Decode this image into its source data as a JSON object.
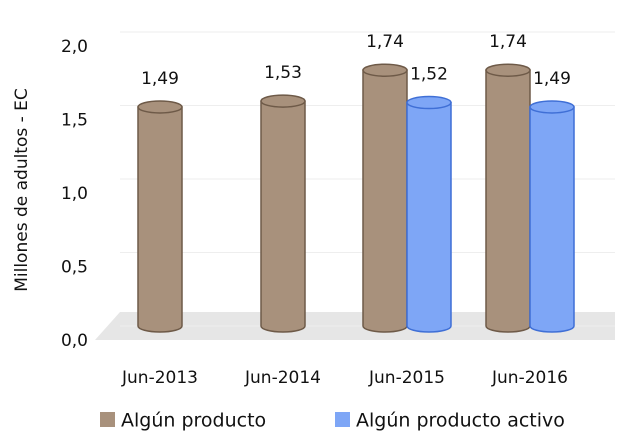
{
  "chart_data": {
    "type": "bar",
    "ylabel": "Millones de adultos - EC",
    "categories": [
      "Jun-2013",
      "Jun-2014",
      "Jun-2015",
      "Jun-2016"
    ],
    "series": [
      {
        "name": "Algún producto",
        "color": "#a8917c",
        "values": [
          1.49,
          1.53,
          1.74,
          1.74
        ],
        "value_labels": [
          "1,49",
          "1,53",
          "1,74",
          "1,74"
        ]
      },
      {
        "name": "Algún producto activo",
        "color": "#7ea6f6",
        "values": [
          null,
          null,
          1.52,
          1.49
        ],
        "value_labels": [
          null,
          null,
          "1,52",
          "1,49"
        ]
      }
    ],
    "ylim": [
      0,
      2
    ],
    "yticks": [
      {
        "value": 0,
        "label": "0,0"
      },
      {
        "value": 0.5,
        "label": "0,5"
      },
      {
        "value": 1,
        "label": "1,0"
      },
      {
        "value": 1.5,
        "label": "1,5"
      },
      {
        "value": 2,
        "label": "2,0"
      }
    ],
    "grid": true,
    "legend": "bottom"
  }
}
